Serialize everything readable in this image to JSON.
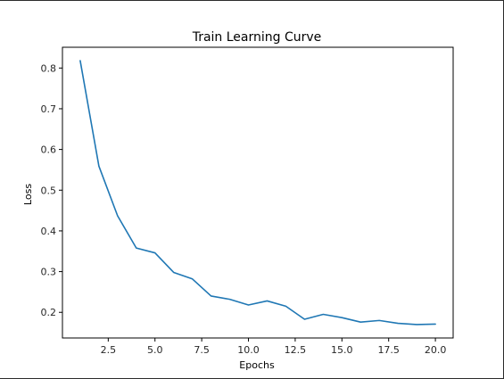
{
  "chart_data": {
    "type": "line",
    "title": "Train Learning Curve",
    "xlabel": "Epochs",
    "ylabel": "Loss",
    "xlim": [
      0.05,
      20.95
    ],
    "ylim": [
      0.137,
      0.851
    ],
    "xticks": [
      2.5,
      5.0,
      7.5,
      10.0,
      12.5,
      15.0,
      17.5,
      20.0
    ],
    "xtick_labels": [
      "2.5",
      "5.0",
      "7.5",
      "10.0",
      "12.5",
      "15.0",
      "17.5",
      "20.0"
    ],
    "yticks": [
      0.2,
      0.3,
      0.4,
      0.5,
      0.6,
      0.7,
      0.8
    ],
    "ytick_labels": [
      "0.2",
      "0.3",
      "0.4",
      "0.5",
      "0.6",
      "0.7",
      "0.8"
    ],
    "grid": false,
    "series": [
      {
        "color": "#1f77b4",
        "x": [
          1,
          2,
          3,
          4,
          5,
          6,
          7,
          8,
          9,
          10,
          11,
          12,
          13,
          14,
          15,
          16,
          17,
          18,
          19,
          20
        ],
        "y": [
          0.818,
          0.559,
          0.437,
          0.358,
          0.346,
          0.298,
          0.282,
          0.24,
          0.232,
          0.218,
          0.228,
          0.215,
          0.183,
          0.195,
          0.187,
          0.176,
          0.18,
          0.173,
          0.17,
          0.171
        ]
      }
    ]
  }
}
